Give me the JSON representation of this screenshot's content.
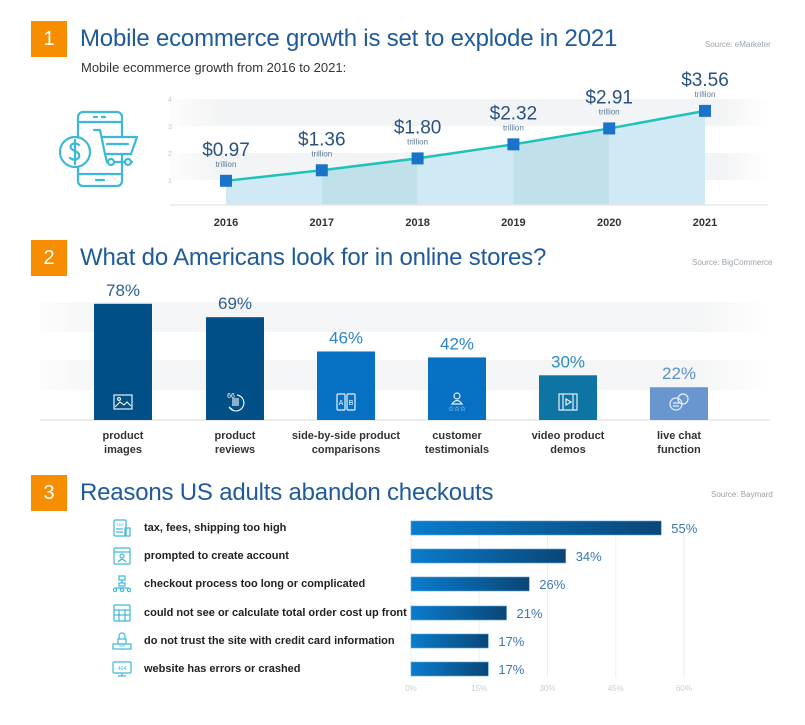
{
  "sections": [
    {
      "number": "1",
      "title": "Mobile ecommerce growth is set to explode in 2021",
      "source": "Source: eMarketer",
      "subtitle": "Mobile ecommerce growth from 2016 to 2021:",
      "icon": "mobile-shopping-cart-dollar-icon"
    },
    {
      "number": "2",
      "title": "What do Americans look for in online stores?",
      "source": "Source: BigCommerce"
    },
    {
      "number": "3",
      "title": "Reasons US adults abandon checkouts",
      "source": "Source: Baymard"
    }
  ],
  "colors": {
    "badge": "#f78d00",
    "title": "#1f5a9a",
    "line": "#1fc2b8",
    "marker": "#1b73c9",
    "area_light": "#cfeaf5",
    "area_dark": "#c0e0ea",
    "icon_teal": "#3db8d9"
  },
  "chart_data": [
    {
      "type": "area",
      "title": "Mobile ecommerce growth from 2016 to 2021:",
      "xlabel": "",
      "ylabel": "",
      "categories": [
        "2016",
        "2017",
        "2018",
        "2019",
        "2020",
        "2021"
      ],
      "values": [
        0.97,
        1.36,
        1.8,
        2.32,
        2.91,
        3.56
      ],
      "value_labels": [
        "$0.97",
        "$1.36",
        "$1.80",
        "$2.32",
        "$2.91",
        "$3.56"
      ],
      "unit_label": "trillion",
      "yticks": [
        "1",
        "2",
        "3",
        "4"
      ],
      "ylim": [
        0,
        4
      ],
      "grid": true,
      "legend": "none"
    },
    {
      "type": "bar",
      "title": "What do Americans look for in online stores?",
      "categories": [
        {
          "line1": "product",
          "line2": "images",
          "icon": "image-icon",
          "color": "#004f86"
        },
        {
          "line1": "product",
          "line2": "reviews",
          "icon": "quote-speech-bubble-icon",
          "color": "#004f86"
        },
        {
          "line1": "side-by-side product",
          "line2": "comparisons",
          "icon": "ab-compare-icon",
          "color": "#0670c2"
        },
        {
          "line1": "customer",
          "line2": "testimonials",
          "icon": "user-rating-stars-icon",
          "color": "#0670c2"
        },
        {
          "line1": "video product",
          "line2": "demos",
          "icon": "film-play-icon",
          "color": "#0d74a4"
        },
        {
          "line1": "live chat",
          "line2": "function",
          "icon": "chat-bubbles-icon",
          "color": "#6a96cf"
        }
      ],
      "values": [
        78,
        69,
        46,
        42,
        30,
        22
      ],
      "value_labels": [
        "78%",
        "69%",
        "46%",
        "42%",
        "30%",
        "22%"
      ],
      "value_label_colors": [
        "#2d5f95",
        "#2d5f95",
        "#2f85c9",
        "#2f85c9",
        "#2f8abd",
        "#5b8fd0"
      ],
      "ylim": [
        0,
        100
      ],
      "grid": true,
      "legend": "none"
    },
    {
      "type": "bar",
      "orientation": "horizontal",
      "title": "Reasons US adults abandon checkouts",
      "categories": [
        {
          "label": "tax, fees, shipping too high",
          "icon": "tax-document-icon"
        },
        {
          "label": "prompted to create account",
          "icon": "account-profile-icon"
        },
        {
          "label": "checkout process too long or complicated",
          "icon": "flowchart-icon"
        },
        {
          "label": "could not see or calculate total order cost up front",
          "icon": "calculator-icon"
        },
        {
          "label": "do not trust the site with credit card information",
          "icon": "lock-password-icon"
        },
        {
          "label": "website has errors or crashed",
          "icon": "error-404-monitor-icon"
        }
      ],
      "values": [
        55,
        34,
        26,
        21,
        17,
        17
      ],
      "value_labels": [
        "55%",
        "34%",
        "26%",
        "21%",
        "17%",
        "17%"
      ],
      "xticks": [
        "0%",
        "15%",
        "30%",
        "45%",
        "60%"
      ],
      "xlim": [
        0,
        60
      ],
      "grid": true,
      "legend": "none"
    }
  ]
}
